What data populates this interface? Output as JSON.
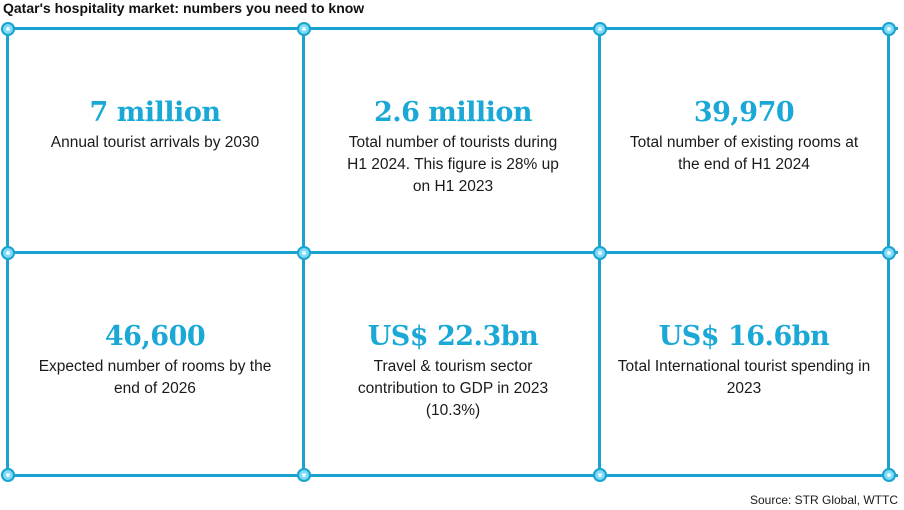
{
  "title": "Qatar's hospitality market: numbers you need to know",
  "colors": {
    "accent": "#1aa8d6",
    "grid_line": "#1aa3d0",
    "node_fill": "#7fdaf5"
  },
  "stats": [
    {
      "value": "7 million",
      "description": "Annual tourist arrivals by 2030"
    },
    {
      "value": "2.6 million",
      "description": "Total number of tourists during H1 2024. This figure is 28% up on H1 2023"
    },
    {
      "value": "39,970",
      "description": "Total number of existing rooms at the end of H1 2024"
    },
    {
      "value": "46,600",
      "description": "Expected number of rooms by the end of 2026"
    },
    {
      "value": "US$ 22.3bn",
      "description": "Travel & tourism sector contribution to GDP in 2023 (10.3%)"
    },
    {
      "value": "US$ 16.6bn",
      "description": "Total International tourist spending in 2023"
    }
  ],
  "source": "Source: STR Global, WTTC"
}
